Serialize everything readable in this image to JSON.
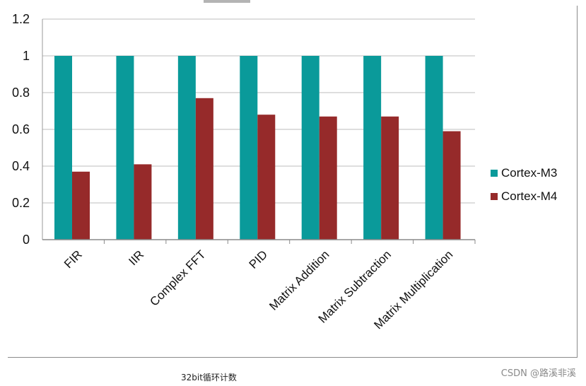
{
  "chart_data": {
    "type": "bar",
    "title": "",
    "xlabel": "",
    "ylabel": "",
    "categories": [
      "FIR",
      "IIR",
      "Complex FFT",
      "PID",
      "Matrix Addition",
      "Matrix Subtraction",
      "Matrix Multiplication"
    ],
    "series": [
      {
        "name": "Cortex-M3",
        "color": "#0a9a9a",
        "values": [
          1,
          1,
          1,
          1,
          1,
          1,
          1
        ]
      },
      {
        "name": "Cortex-M4",
        "color": "#962a2a",
        "values": [
          0.37,
          0.41,
          0.77,
          0.68,
          0.67,
          0.67,
          0.59
        ]
      }
    ],
    "ylim": [
      0,
      1.2
    ],
    "yticks": [
      "0",
      "0.2",
      "0.4",
      "0.6",
      "0.8",
      "1",
      "1.2"
    ],
    "grid": true,
    "legend": "right"
  },
  "caption": "32bit循环计数",
  "watermark": "CSDN @路溪非溪"
}
